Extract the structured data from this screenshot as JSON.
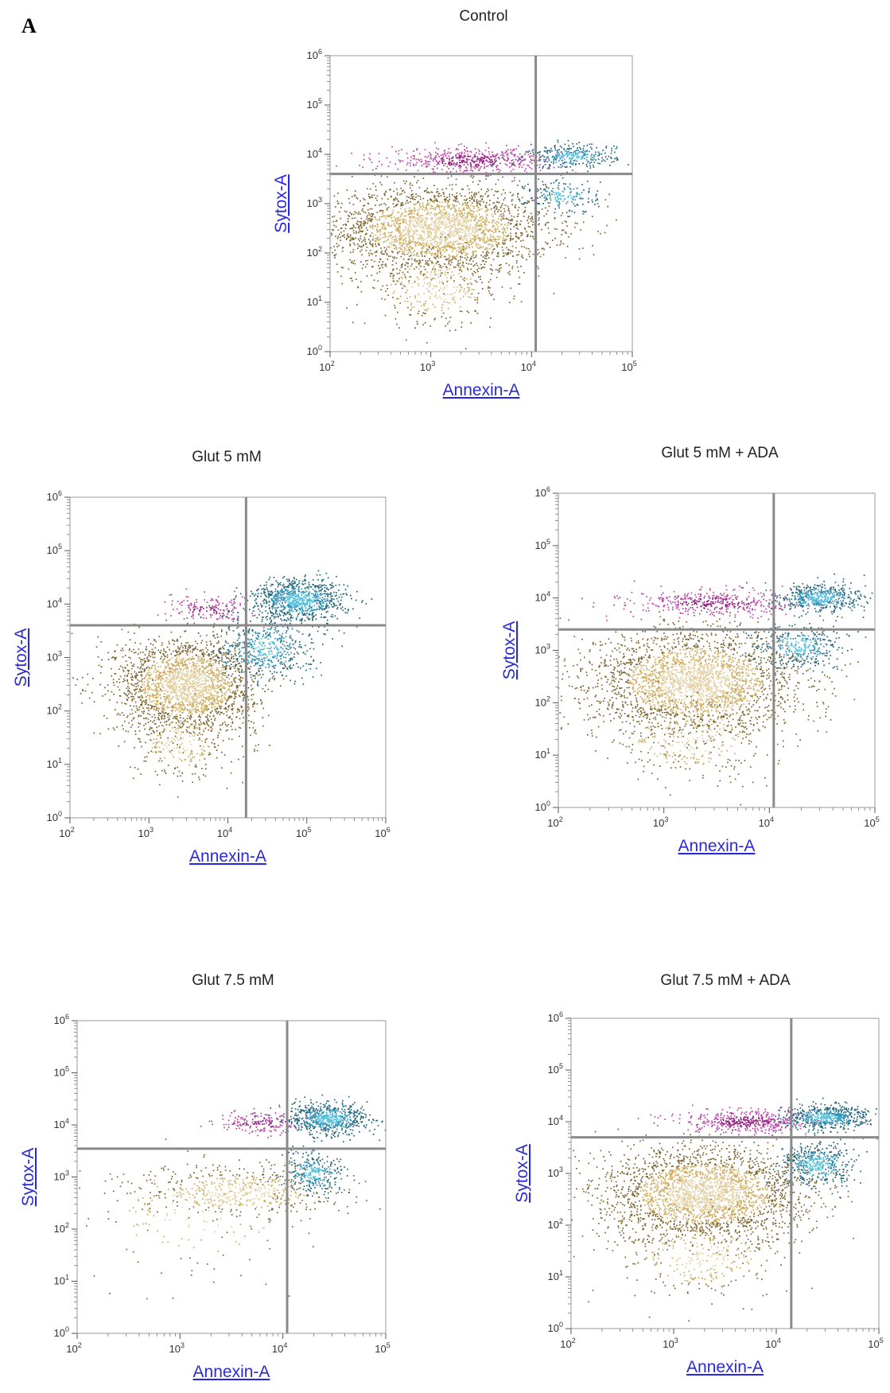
{
  "figure": {
    "panel_letter": "A"
  },
  "colors": {
    "live": "#c9a24a",
    "early_apoptotic": "#2f8fb0",
    "late_apoptotic_bright": "#4fc0dd",
    "necrotic": "#b0279a",
    "gate": "#8a8a8a"
  },
  "chart_data": [
    {
      "type": "scatter",
      "title": "Control",
      "xlabel": "Annexin-A",
      "ylabel": "Sytox-A",
      "x_scale": "log",
      "y_scale": "log",
      "xlim": [
        100,
        100000
      ],
      "ylim": [
        1,
        1000000
      ],
      "x_ticks": [
        "10^2",
        "10^3",
        "10^4",
        "10^5"
      ],
      "y_ticks": [
        "10^0",
        "10^1",
        "10^2",
        "10^3",
        "10^4",
        "10^5",
        "10^6"
      ],
      "gates": {
        "x": 11000,
        "y": 4000
      },
      "populations": [
        {
          "name": "live",
          "center": [
            1200,
            300
          ],
          "spread": [
            0.55,
            0.45
          ],
          "count": 2600,
          "color": "live"
        },
        {
          "name": "live_low",
          "center": [
            1100,
            20
          ],
          "spread": [
            0.35,
            0.4
          ],
          "count": 350,
          "color": "live"
        },
        {
          "name": "necrotic",
          "center": [
            2500,
            7500
          ],
          "spread": [
            0.4,
            0.12
          ],
          "count": 520,
          "color": "necrotic"
        },
        {
          "name": "early_apoptotic",
          "center": [
            20000,
            1400
          ],
          "spread": [
            0.18,
            0.18
          ],
          "count": 180,
          "color": "early_apoptotic"
        },
        {
          "name": "late_apoptotic",
          "center": [
            25000,
            9000
          ],
          "spread": [
            0.22,
            0.12
          ],
          "count": 320,
          "color": "early_apoptotic"
        }
      ]
    },
    {
      "type": "scatter",
      "title": "Glut 5 mM",
      "xlabel": "Annexin-A",
      "ylabel": "Sytox-A",
      "x_scale": "log",
      "y_scale": "log",
      "xlim": [
        100,
        1000000
      ],
      "ylim": [
        1,
        1000000
      ],
      "x_ticks": [
        "10^2",
        "10^3",
        "10^4",
        "10^5",
        "10^6"
      ],
      "y_ticks": [
        "10^0",
        "10^1",
        "10^2",
        "10^3",
        "10^4",
        "10^5",
        "10^6"
      ],
      "gates": {
        "x": 17000,
        "y": 4000
      },
      "populations": [
        {
          "name": "live",
          "center": [
            3000,
            300
          ],
          "spread": [
            0.45,
            0.45
          ],
          "count": 2200,
          "color": "live"
        },
        {
          "name": "live_low",
          "center": [
            2500,
            25
          ],
          "spread": [
            0.3,
            0.35
          ],
          "count": 250,
          "color": "live"
        },
        {
          "name": "necrotic",
          "center": [
            6000,
            8000
          ],
          "spread": [
            0.25,
            0.12
          ],
          "count": 160,
          "color": "necrotic"
        },
        {
          "name": "early_apoptotic",
          "center": [
            30000,
            1500
          ],
          "spread": [
            0.3,
            0.3
          ],
          "count": 550,
          "color": "early_apoptotic"
        },
        {
          "name": "late_apoptotic",
          "center": [
            80000,
            12000
          ],
          "spread": [
            0.3,
            0.2
          ],
          "count": 900,
          "color": "early_apoptotic"
        }
      ]
    },
    {
      "type": "scatter",
      "title": "Glut 5 mM + ADA",
      "xlabel": "Annexin-A",
      "ylabel": "Sytox-A",
      "x_scale": "log",
      "y_scale": "log",
      "xlim": [
        100,
        100000
      ],
      "ylim": [
        1,
        1000000
      ],
      "x_ticks": [
        "10^2",
        "10^3",
        "10^4",
        "10^5"
      ],
      "y_ticks": [
        "10^0",
        "10^1",
        "10^2",
        "10^3",
        "10^4",
        "10^5",
        "10^6"
      ],
      "gates": {
        "x": 11000,
        "y": 2500
      },
      "populations": [
        {
          "name": "live",
          "center": [
            2000,
            250
          ],
          "spread": [
            0.5,
            0.5
          ],
          "count": 2600,
          "color": "live"
        },
        {
          "name": "live_low",
          "center": [
            1800,
            20
          ],
          "spread": [
            0.4,
            0.4
          ],
          "count": 300,
          "color": "live"
        },
        {
          "name": "necrotic",
          "center": [
            3000,
            8000
          ],
          "spread": [
            0.4,
            0.12
          ],
          "count": 420,
          "color": "necrotic"
        },
        {
          "name": "early_apoptotic",
          "center": [
            20000,
            1200
          ],
          "spread": [
            0.2,
            0.2
          ],
          "count": 350,
          "color": "early_apoptotic"
        },
        {
          "name": "late_apoptotic",
          "center": [
            30000,
            10000
          ],
          "spread": [
            0.2,
            0.14
          ],
          "count": 500,
          "color": "early_apoptotic"
        }
      ]
    },
    {
      "type": "scatter",
      "title": "Glut 7.5 mM",
      "xlabel": "Annexin-A",
      "ylabel": "Sytox-A",
      "x_scale": "log",
      "y_scale": "log",
      "xlim": [
        100,
        100000
      ],
      "ylim": [
        1,
        1000000
      ],
      "x_ticks": [
        "10^2",
        "10^3",
        "10^4",
        "10^5"
      ],
      "y_ticks": [
        "10^0",
        "10^1",
        "10^2",
        "10^3",
        "10^4",
        "10^5",
        "10^6"
      ],
      "gates": {
        "x": 11000,
        "y": 3500
      },
      "populations": [
        {
          "name": "live",
          "center": [
            4000,
            500
          ],
          "spread": [
            0.5,
            0.25
          ],
          "count": 500,
          "color": "live"
        },
        {
          "name": "live_sparse",
          "center": [
            1500,
            200
          ],
          "spread": [
            0.6,
            0.6
          ],
          "count": 180,
          "color": "live"
        },
        {
          "name": "necrotic",
          "center": [
            6000,
            11000
          ],
          "spread": [
            0.2,
            0.12
          ],
          "count": 180,
          "color": "necrotic"
        },
        {
          "name": "early_apoptotic",
          "center": [
            20000,
            1200
          ],
          "spread": [
            0.15,
            0.2
          ],
          "count": 300,
          "color": "early_apoptotic"
        },
        {
          "name": "late_apoptotic",
          "center": [
            28000,
            13000
          ],
          "spread": [
            0.2,
            0.15
          ],
          "count": 650,
          "color": "early_apoptotic"
        }
      ]
    },
    {
      "type": "scatter",
      "title": "Glut 7.5 mM + ADA",
      "xlabel": "Annexin-A",
      "ylabel": "Sytox-A",
      "x_scale": "log",
      "y_scale": "log",
      "xlim": [
        100,
        100000
      ],
      "ylim": [
        1,
        1000000
      ],
      "x_ticks": [
        "10^2",
        "10^3",
        "10^4",
        "10^5"
      ],
      "y_ticks": [
        "10^0",
        "10^1",
        "10^2",
        "10^3",
        "10^4",
        "10^5",
        "10^6"
      ],
      "gates": {
        "x": 14000,
        "y": 5000
      },
      "populations": [
        {
          "name": "live",
          "center": [
            2000,
            400
          ],
          "spread": [
            0.5,
            0.45
          ],
          "count": 2600,
          "color": "live"
        },
        {
          "name": "live_low",
          "center": [
            1800,
            25
          ],
          "spread": [
            0.4,
            0.4
          ],
          "count": 300,
          "color": "live"
        },
        {
          "name": "necrotic",
          "center": [
            5000,
            10000
          ],
          "spread": [
            0.3,
            0.12
          ],
          "count": 480,
          "color": "necrotic"
        },
        {
          "name": "early_apoptotic",
          "center": [
            25000,
            1500
          ],
          "spread": [
            0.18,
            0.2
          ],
          "count": 450,
          "color": "early_apoptotic"
        },
        {
          "name": "late_apoptotic",
          "center": [
            30000,
            12000
          ],
          "spread": [
            0.2,
            0.12
          ],
          "count": 550,
          "color": "early_apoptotic"
        }
      ]
    }
  ]
}
